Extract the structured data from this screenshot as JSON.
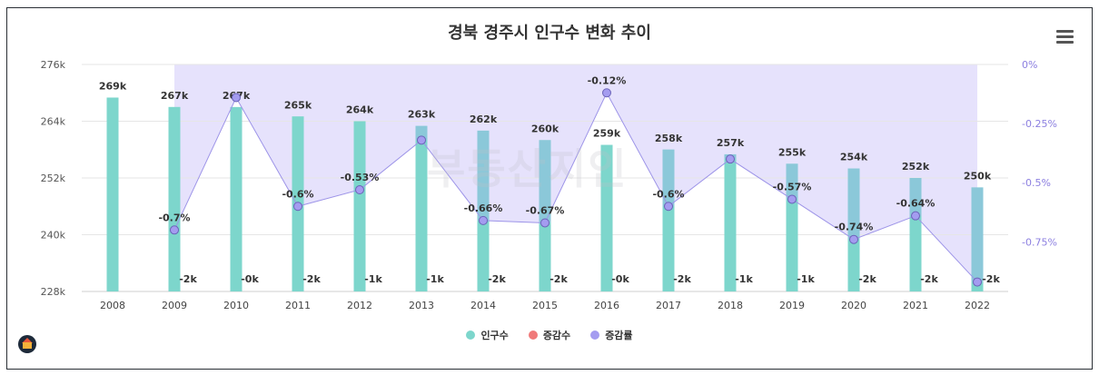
{
  "title": "경북 경주시 인구수 변화 추이",
  "watermark": "부동산지인",
  "colors": {
    "population": "#7dd6cc",
    "population_right": "#8fc4dc",
    "change": "#f07a7a",
    "rate": "#a49cf0",
    "rate_area": "#e3dffc",
    "rate_line": "#9d94e8"
  },
  "chart_data": {
    "type": "bar",
    "categories": [
      "2008",
      "2009",
      "2010",
      "2011",
      "2012",
      "2013",
      "2014",
      "2015",
      "2016",
      "2017",
      "2018",
      "2019",
      "2020",
      "2021",
      "2022"
    ],
    "series": [
      {
        "name": "인구수",
        "axis": "left",
        "type": "bar",
        "values": [
          269,
          267,
          267,
          265,
          264,
          263,
          262,
          260,
          259,
          258,
          257,
          255,
          254,
          252,
          250
        ],
        "labels": [
          "269k",
          "267k",
          "267k",
          "265k",
          "264k",
          "263k",
          "262k",
          "260k",
          "259k",
          "258k",
          "257k",
          "255k",
          "254k",
          "252k",
          "250k"
        ]
      },
      {
        "name": "증감수",
        "axis": "left",
        "type": "bar",
        "values": [
          null,
          -2,
          0,
          -2,
          -1,
          -1,
          -2,
          -2,
          0,
          -2,
          -1,
          -1,
          -2,
          -2,
          -2
        ],
        "labels": [
          "",
          "-2k",
          "-0k",
          "-2k",
          "-1k",
          "-1k",
          "-2k",
          "-2k",
          "-0k",
          "-2k",
          "-1k",
          "-1k",
          "-2k",
          "-2k",
          "-2k"
        ]
      },
      {
        "name": "증감률",
        "axis": "right",
        "type": "area",
        "values": [
          null,
          -0.7,
          -0.14,
          -0.6,
          -0.53,
          -0.32,
          -0.66,
          -0.67,
          -0.12,
          -0.6,
          -0.4,
          -0.57,
          -0.74,
          -0.64,
          -0.92
        ],
        "labels": [
          "",
          "-0.7%",
          "",
          "-0.6%",
          "-0.53%",
          "",
          "-0.66%",
          "-0.67%",
          "-0.12%",
          "-0.6%",
          "",
          "-0.57%",
          "-0.74%",
          "-0.64%",
          ""
        ]
      }
    ],
    "y_left": {
      "ticks": [
        "276k",
        "264k",
        "252k",
        "240k",
        "228k"
      ],
      "min": 228,
      "max": 276
    },
    "y_right": {
      "ticks": [
        "0%",
        "-0.25%",
        "-0.5%",
        "-0.75%"
      ],
      "min": -0.96,
      "max": 0
    },
    "legend_position": "bottom-center",
    "grid": true
  },
  "legend": [
    {
      "label": "인구수",
      "color": "#7dd6cc"
    },
    {
      "label": "증감수",
      "color": "#f07a7a"
    },
    {
      "label": "증감률",
      "color": "#a49cf0"
    }
  ]
}
